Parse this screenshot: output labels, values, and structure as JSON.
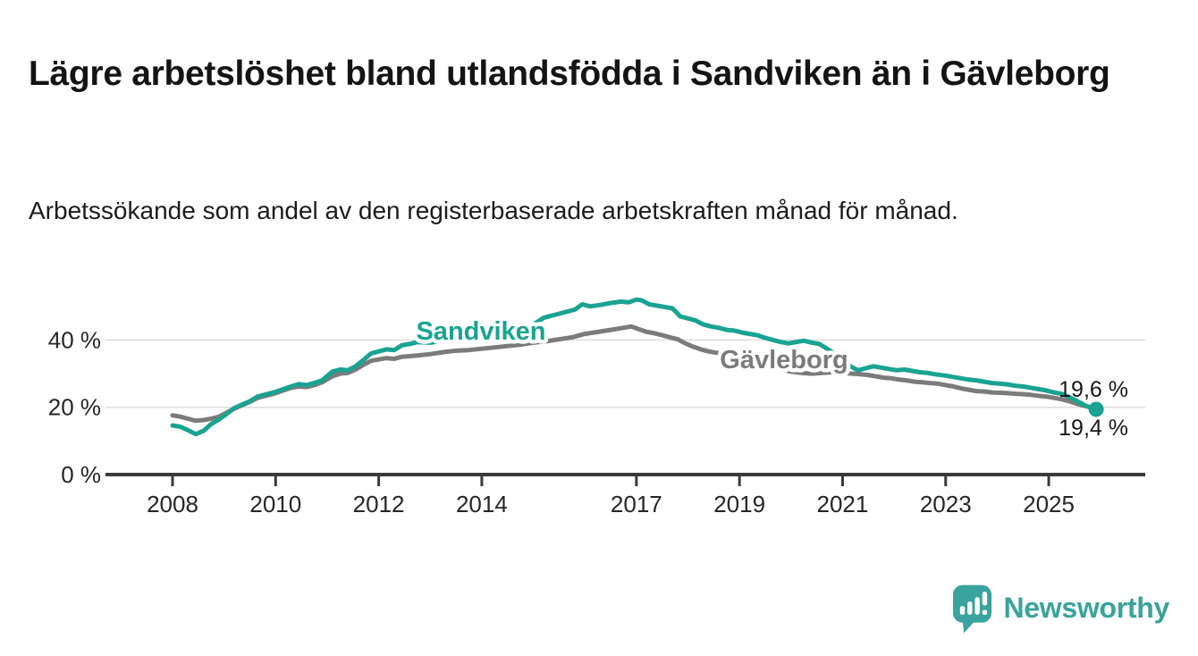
{
  "chart_data": {
    "type": "line",
    "title": "Lägre arbetslöshet bland utlandsfödda i Sandviken än i Gävleborg",
    "subtitle": "Arbetssökande som andel av den registerbaserade arbetskraften månad för månad.",
    "unit": "%",
    "grid": "horizontal",
    "legend_position": "inline-labels",
    "x_axis": {
      "range": [
        2007.7,
        2026.3
      ],
      "ticks": [
        {
          "label": "2008",
          "year": 2008
        },
        {
          "label": "2010",
          "year": 2010
        },
        {
          "label": "2012",
          "year": 2012
        },
        {
          "label": "2014",
          "year": 2014
        },
        {
          "label": "2017",
          "year": 2017
        },
        {
          "label": "2019",
          "year": 2019
        },
        {
          "label": "2021",
          "year": 2021
        },
        {
          "label": "2023",
          "year": 2023
        },
        {
          "label": "2025",
          "year": 2025
        }
      ]
    },
    "y_axis": {
      "range": [
        0,
        55
      ],
      "ticks": [
        {
          "label": "40 %",
          "value": 40
        },
        {
          "label": "20 %",
          "value": 20
        },
        {
          "label": "0 %",
          "value": 0
        }
      ]
    },
    "style": {
      "grid_color": "#dcdcdc",
      "axis_color": "#3b3b3b"
    },
    "series": [
      {
        "name": "Gävleborg",
        "color": "#7b7b7b",
        "end_label": "19,6 %",
        "end_dot": false,
        "points": [
          [
            2008.0,
            17.6
          ],
          [
            2008.15,
            17.2
          ],
          [
            2008.3,
            16.6
          ],
          [
            2008.45,
            16.0
          ],
          [
            2008.6,
            16.2
          ],
          [
            2008.75,
            16.6
          ],
          [
            2008.9,
            17.2
          ],
          [
            2009.05,
            18.4
          ],
          [
            2009.2,
            19.6
          ],
          [
            2009.35,
            20.6
          ],
          [
            2009.5,
            21.6
          ],
          [
            2009.65,
            22.8
          ],
          [
            2009.8,
            23.4
          ],
          [
            2010.0,
            24.2
          ],
          [
            2010.15,
            25.0
          ],
          [
            2010.3,
            25.8
          ],
          [
            2010.45,
            26.2
          ],
          [
            2010.6,
            26.0
          ],
          [
            2010.75,
            26.6
          ],
          [
            2010.9,
            27.4
          ],
          [
            2011.1,
            29.2
          ],
          [
            2011.25,
            30.0
          ],
          [
            2011.4,
            30.2
          ],
          [
            2011.55,
            31.2
          ],
          [
            2011.7,
            32.6
          ],
          [
            2011.85,
            33.8
          ],
          [
            2012.0,
            34.2
          ],
          [
            2012.15,
            34.6
          ],
          [
            2012.3,
            34.4
          ],
          [
            2012.45,
            35.0
          ],
          [
            2012.6,
            35.2
          ],
          [
            2012.75,
            35.4
          ],
          [
            2013.0,
            35.8
          ],
          [
            2013.25,
            36.4
          ],
          [
            2013.5,
            36.8
          ],
          [
            2013.75,
            37.0
          ],
          [
            2014.0,
            37.4
          ],
          [
            2014.25,
            37.8
          ],
          [
            2014.5,
            38.2
          ],
          [
            2014.75,
            38.6
          ],
          [
            2015.0,
            39.2
          ],
          [
            2015.25,
            39.6
          ],
          [
            2015.5,
            40.2
          ],
          [
            2015.75,
            40.8
          ],
          [
            2016.0,
            41.8
          ],
          [
            2016.25,
            42.4
          ],
          [
            2016.5,
            43.0
          ],
          [
            2016.75,
            43.6
          ],
          [
            2016.9,
            44.0
          ],
          [
            2017.05,
            43.2
          ],
          [
            2017.2,
            42.4
          ],
          [
            2017.35,
            42.0
          ],
          [
            2017.5,
            41.4
          ],
          [
            2017.65,
            40.8
          ],
          [
            2017.8,
            40.2
          ],
          [
            2017.95,
            39.0
          ],
          [
            2018.1,
            38.0
          ],
          [
            2018.25,
            37.2
          ],
          [
            2018.4,
            36.6
          ],
          [
            2018.55,
            36.2
          ],
          [
            2018.8,
            35.4
          ],
          [
            2019.0,
            34.6
          ],
          [
            2019.2,
            33.8
          ],
          [
            2019.4,
            33.0
          ],
          [
            2019.6,
            32.2
          ],
          [
            2019.8,
            31.4
          ],
          [
            2020.0,
            30.6
          ],
          [
            2020.2,
            30.2
          ],
          [
            2020.4,
            30.0
          ],
          [
            2020.6,
            30.2
          ],
          [
            2020.8,
            30.4
          ],
          [
            2021.0,
            30.2
          ],
          [
            2021.2,
            30.0
          ],
          [
            2021.35,
            29.8
          ],
          [
            2021.5,
            29.6
          ],
          [
            2021.65,
            29.2
          ],
          [
            2021.8,
            28.8
          ],
          [
            2021.95,
            28.6
          ],
          [
            2022.1,
            28.2
          ],
          [
            2022.25,
            28.0
          ],
          [
            2022.4,
            27.6
          ],
          [
            2022.55,
            27.4
          ],
          [
            2022.7,
            27.2
          ],
          [
            2022.85,
            27.0
          ],
          [
            2023.0,
            26.6
          ],
          [
            2023.15,
            26.2
          ],
          [
            2023.3,
            25.6
          ],
          [
            2023.45,
            25.2
          ],
          [
            2023.6,
            24.8
          ],
          [
            2023.75,
            24.7
          ],
          [
            2023.9,
            24.4
          ],
          [
            2024.05,
            24.3
          ],
          [
            2024.2,
            24.2
          ],
          [
            2024.35,
            24.0
          ],
          [
            2024.5,
            23.9
          ],
          [
            2024.65,
            23.7
          ],
          [
            2024.8,
            23.4
          ],
          [
            2024.95,
            23.2
          ],
          [
            2025.1,
            22.8
          ],
          [
            2025.25,
            22.4
          ],
          [
            2025.4,
            21.8
          ],
          [
            2025.55,
            21.0
          ],
          [
            2025.7,
            20.4
          ],
          [
            2025.85,
            19.8
          ],
          [
            2025.92,
            19.6
          ]
        ]
      },
      {
        "name": "Sandviken",
        "color": "#1aa392",
        "end_label": "19,4 %",
        "end_dot": true,
        "points": [
          [
            2008.0,
            14.6
          ],
          [
            2008.15,
            14.2
          ],
          [
            2008.3,
            13.2
          ],
          [
            2008.45,
            12.0
          ],
          [
            2008.6,
            13.0
          ],
          [
            2008.75,
            15.0
          ],
          [
            2008.9,
            16.4
          ],
          [
            2009.05,
            18.0
          ],
          [
            2009.2,
            19.8
          ],
          [
            2009.35,
            20.8
          ],
          [
            2009.5,
            21.8
          ],
          [
            2009.65,
            23.2
          ],
          [
            2009.8,
            23.8
          ],
          [
            2010.0,
            24.6
          ],
          [
            2010.15,
            25.4
          ],
          [
            2010.3,
            26.2
          ],
          [
            2010.45,
            26.9
          ],
          [
            2010.6,
            26.6
          ],
          [
            2010.75,
            27.2
          ],
          [
            2010.9,
            28.0
          ],
          [
            2011.1,
            30.6
          ],
          [
            2011.25,
            31.2
          ],
          [
            2011.4,
            31.0
          ],
          [
            2011.55,
            32.2
          ],
          [
            2011.7,
            34.0
          ],
          [
            2011.85,
            36.0
          ],
          [
            2012.0,
            36.6
          ],
          [
            2012.15,
            37.2
          ],
          [
            2012.3,
            37.0
          ],
          [
            2012.45,
            38.4
          ],
          [
            2012.6,
            38.8
          ],
          [
            2012.75,
            39.4
          ],
          [
            2013.0,
            39.2
          ],
          [
            2013.25,
            39.8
          ],
          [
            2013.5,
            40.2
          ],
          [
            2013.75,
            40.0
          ],
          [
            2014.0,
            40.6
          ],
          [
            2014.25,
            41.4
          ],
          [
            2014.5,
            42.0
          ],
          [
            2014.75,
            43.0
          ],
          [
            2015.0,
            44.6
          ],
          [
            2015.2,
            46.6
          ],
          [
            2015.4,
            47.4
          ],
          [
            2015.6,
            48.2
          ],
          [
            2015.8,
            49.0
          ],
          [
            2015.95,
            50.6
          ],
          [
            2016.1,
            50.0
          ],
          [
            2016.3,
            50.4
          ],
          [
            2016.5,
            51.0
          ],
          [
            2016.7,
            51.4
          ],
          [
            2016.85,
            51.2
          ],
          [
            2017.0,
            52.0
          ],
          [
            2017.1,
            51.8
          ],
          [
            2017.25,
            50.6
          ],
          [
            2017.4,
            50.2
          ],
          [
            2017.55,
            49.8
          ],
          [
            2017.7,
            49.4
          ],
          [
            2017.85,
            47.0
          ],
          [
            2018.0,
            46.4
          ],
          [
            2018.15,
            45.8
          ],
          [
            2018.3,
            44.6
          ],
          [
            2018.45,
            44.0
          ],
          [
            2018.6,
            43.6
          ],
          [
            2018.75,
            43.0
          ],
          [
            2018.9,
            42.8
          ],
          [
            2019.05,
            42.2
          ],
          [
            2019.2,
            41.8
          ],
          [
            2019.35,
            41.4
          ],
          [
            2019.5,
            40.6
          ],
          [
            2019.65,
            40.0
          ],
          [
            2019.8,
            39.4
          ],
          [
            2019.95,
            39.0
          ],
          [
            2020.1,
            39.4
          ],
          [
            2020.25,
            39.8
          ],
          [
            2020.4,
            39.2
          ],
          [
            2020.55,
            38.8
          ],
          [
            2020.7,
            37.4
          ],
          [
            2020.85,
            35.8
          ],
          [
            2021.0,
            34.0
          ],
          [
            2021.15,
            32.2
          ],
          [
            2021.3,
            31.0
          ],
          [
            2021.45,
            31.6
          ],
          [
            2021.6,
            32.2
          ],
          [
            2021.75,
            31.8
          ],
          [
            2021.9,
            31.4
          ],
          [
            2022.05,
            31.0
          ],
          [
            2022.2,
            31.2
          ],
          [
            2022.35,
            30.8
          ],
          [
            2022.5,
            30.4
          ],
          [
            2022.65,
            30.2
          ],
          [
            2022.8,
            29.8
          ],
          [
            2023.0,
            29.4
          ],
          [
            2023.15,
            29.0
          ],
          [
            2023.3,
            28.6
          ],
          [
            2023.45,
            28.2
          ],
          [
            2023.6,
            28.0
          ],
          [
            2023.75,
            27.6
          ],
          [
            2023.9,
            27.2
          ],
          [
            2024.05,
            27.0
          ],
          [
            2024.2,
            26.8
          ],
          [
            2024.35,
            26.4
          ],
          [
            2024.5,
            26.2
          ],
          [
            2024.65,
            25.8
          ],
          [
            2024.8,
            25.4
          ],
          [
            2024.95,
            25.0
          ],
          [
            2025.1,
            24.4
          ],
          [
            2025.25,
            24.0
          ],
          [
            2025.4,
            23.0
          ],
          [
            2025.55,
            21.8
          ],
          [
            2025.7,
            20.6
          ],
          [
            2025.85,
            19.6
          ],
          [
            2025.92,
            19.4
          ]
        ]
      }
    ]
  },
  "branding": {
    "logo_text": "Newsworthy",
    "logo_color": "#3aa39d",
    "logo_icon": "newsworthy-chart-bubble-icon"
  }
}
